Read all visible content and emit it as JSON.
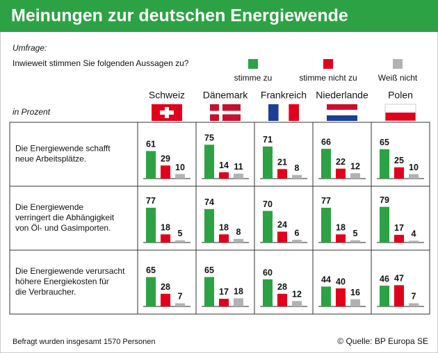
{
  "chart_data": {
    "type": "bar",
    "title": "Meinungen zur deutschen Energiewende",
    "survey_label": "Umfrage:",
    "question": "Inwieweit stimmen Sie folgenden Aussagen zu?",
    "unit_label": "in Prozent",
    "categories": [
      "Schweiz",
      "Dänemark",
      "Frankreich",
      "Niederlande",
      "Polen"
    ],
    "statements": [
      [
        "Die Energiewende schafft",
        "neue Arbeitsplätze."
      ],
      [
        "Die Energiewende",
        "verringert die Abhängigkeit",
        "von Öl- und Gasimporten."
      ],
      [
        "Die Energiewende verursacht",
        "höhere Energiekosten für",
        "die Verbraucher."
      ]
    ],
    "series": [
      {
        "name": "stimme zu",
        "color": "#2ca244",
        "values": [
          [
            61,
            75,
            71,
            66,
            65
          ],
          [
            77,
            74,
            70,
            77,
            79
          ],
          [
            65,
            65,
            60,
            44,
            46
          ]
        ]
      },
      {
        "name": "stimme nicht zu",
        "color": "#e2001a",
        "values": [
          [
            29,
            14,
            21,
            22,
            25
          ],
          [
            18,
            18,
            24,
            18,
            17
          ],
          [
            28,
            17,
            28,
            40,
            47
          ]
        ]
      },
      {
        "name": "Weiß nicht",
        "color": "#b2b2b2",
        "values": [
          [
            10,
            11,
            8,
            12,
            10
          ],
          [
            5,
            8,
            6,
            5,
            4
          ],
          [
            7,
            18,
            12,
            16,
            7
          ]
        ]
      }
    ],
    "footnote": "Befragt wurden insgesamt 1570 Personen",
    "source": "© Quelle:  BP Europa SE"
  }
}
